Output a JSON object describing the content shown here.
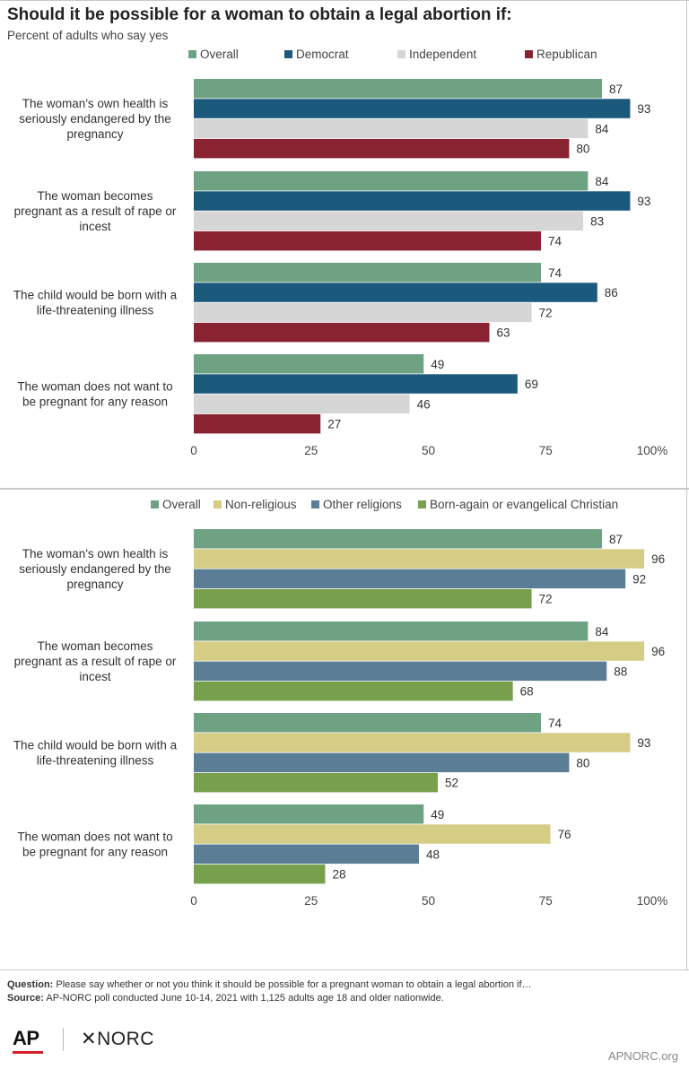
{
  "title": "Should it be possible for a woman to obtain a legal abortion if:",
  "subtitle": "Percent of adults who say yes",
  "chart_data": [
    {
      "type": "bar",
      "orientation": "horizontal",
      "categories": [
        [
          "The woman's own health is",
          "seriously endangered by the",
          "pregnancy"
        ],
        [
          "The woman becomes",
          "pregnant as a result of rape or",
          "incest"
        ],
        [
          "The child would be born with a",
          "life-threatening illness"
        ],
        [
          "The woman does not want to",
          "be pregnant for any reason"
        ]
      ],
      "series": [
        {
          "name": "Overall",
          "color": "#6fa183",
          "values": [
            87,
            84,
            74,
            49
          ]
        },
        {
          "name": "Democrat",
          "color": "#1b5a7d",
          "values": [
            93,
            93,
            86,
            69
          ]
        },
        {
          "name": "Independent",
          "color": "#d6d6d6",
          "values": [
            84,
            83,
            72,
            46
          ]
        },
        {
          "name": "Republican",
          "color": "#8a2331",
          "values": [
            80,
            74,
            63,
            27
          ]
        }
      ],
      "xlim": [
        0,
        100
      ],
      "xticks": [
        "0",
        "25",
        "50",
        "75",
        "100%"
      ],
      "legend_position": "top",
      "grid": false,
      "data_labels": true
    },
    {
      "type": "bar",
      "orientation": "horizontal",
      "categories": [
        [
          "The woman's own health is",
          "seriously endangered by the",
          "pregnancy"
        ],
        [
          "The woman becomes",
          "pregnant as a result of rape or",
          "incest"
        ],
        [
          "The child would be born with a",
          "life-threatening illness"
        ],
        [
          "The woman does not want to",
          "be pregnant for any reason"
        ]
      ],
      "series": [
        {
          "name": "Overall",
          "color": "#6fa183",
          "values": [
            87,
            84,
            74,
            49
          ]
        },
        {
          "name": "Non-religious",
          "color": "#d5cd86",
          "values": [
            96,
            96,
            93,
            76
          ]
        },
        {
          "name": "Other religions",
          "color": "#5b7e96",
          "values": [
            92,
            88,
            80,
            48
          ]
        },
        {
          "name": "Born-again or evangelical Christian",
          "color": "#76a04c",
          "values": [
            72,
            68,
            52,
            28
          ]
        }
      ],
      "xlim": [
        0,
        100
      ],
      "xticks": [
        "0",
        "25",
        "50",
        "75",
        "100%"
      ],
      "legend_position": "top",
      "grid": false,
      "data_labels": true
    }
  ],
  "footnote": {
    "question_label": "Question:",
    "question_text": " Please say whether or not you think it should be possible for a pregnant woman to obtain a legal abortion if…",
    "source_label": "Source:",
    "source_text": " AP-NORC poll conducted June 10-14, 2021 with 1,125 adults age 18 and older nationwide."
  },
  "logos": {
    "ap": "AP",
    "norc": "✕NORC"
  },
  "site_url": "APNORC.org"
}
